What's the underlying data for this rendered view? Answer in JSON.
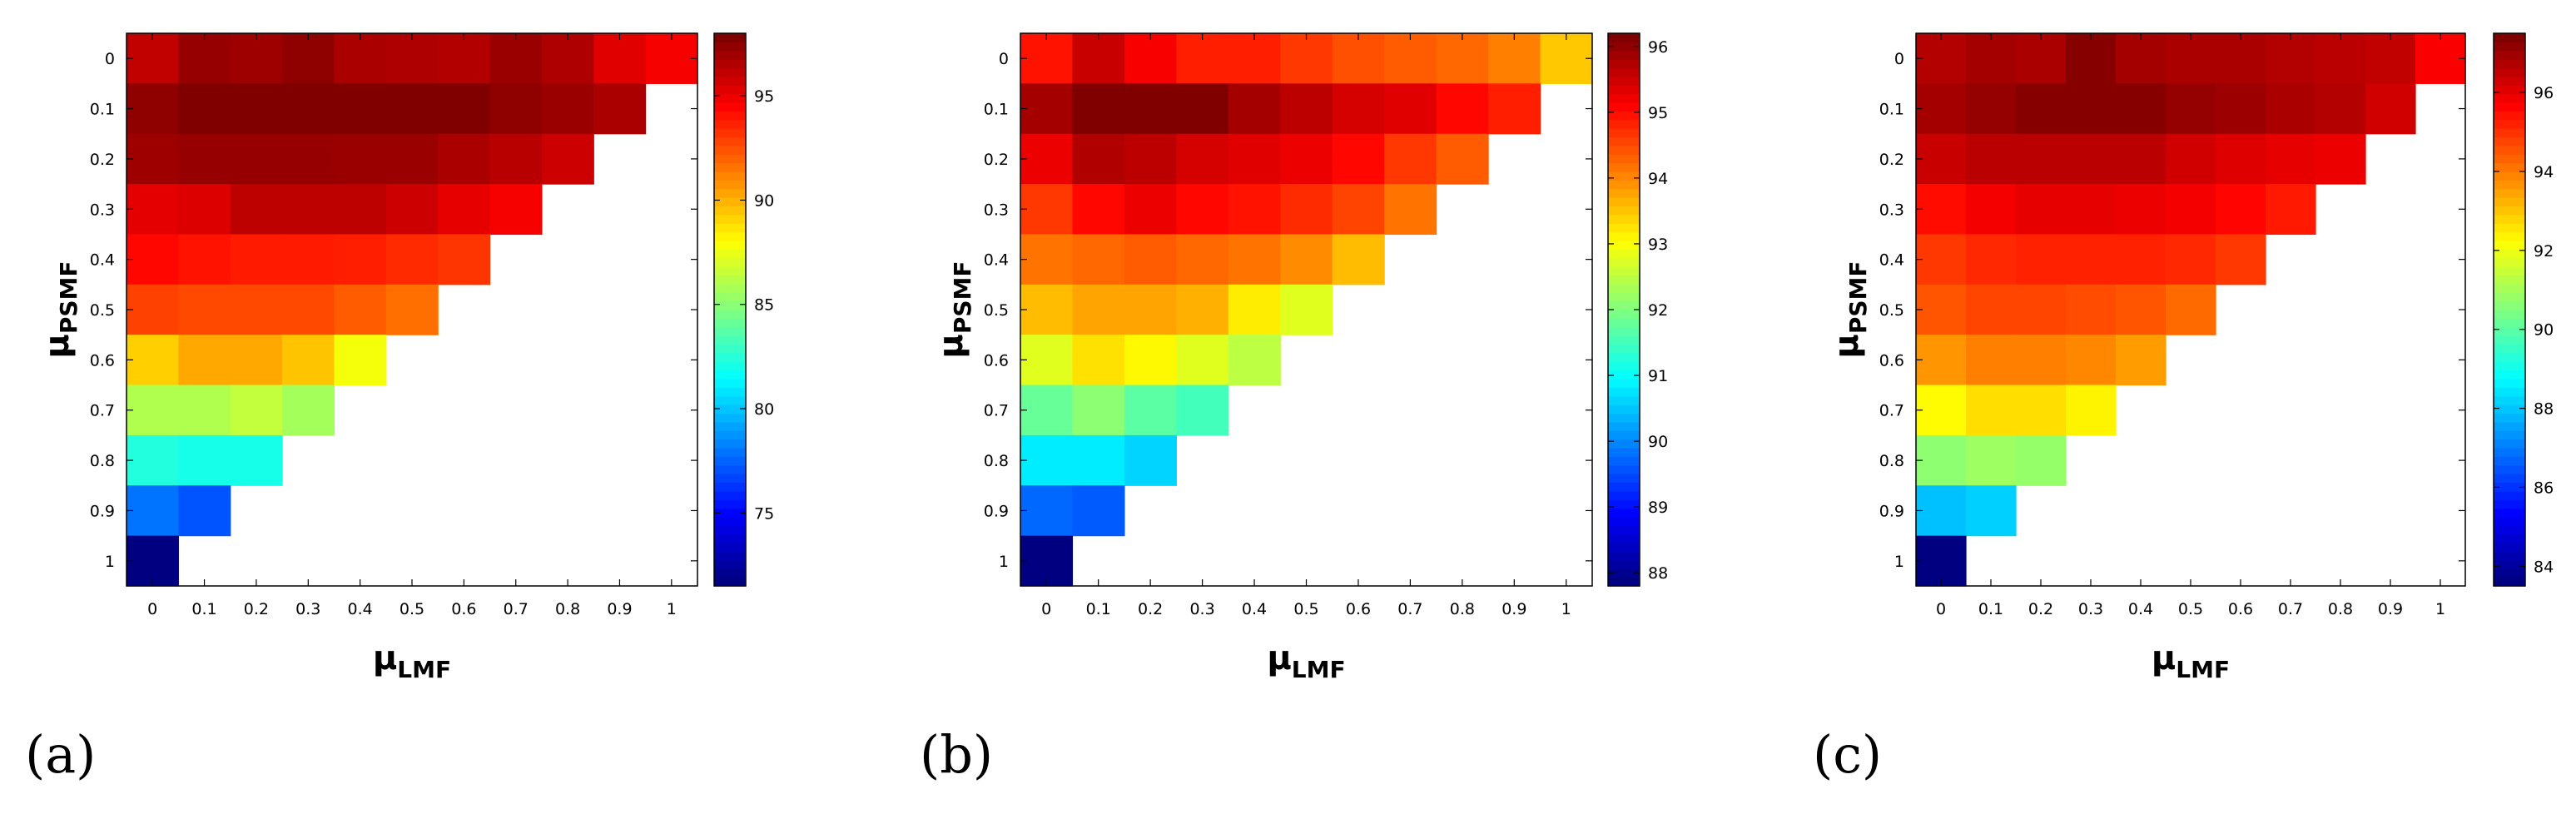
{
  "chart_data": [
    {
      "type": "heatmap",
      "panel_label": "(a)",
      "xlabel": {
        "symbol": "μ",
        "sub": "LMF"
      },
      "ylabel": {
        "symbol": "μ",
        "sub": "PSMF"
      },
      "x": [
        "0",
        "0.1",
        "0.2",
        "0.3",
        "0.4",
        "0.5",
        "0.6",
        "0.7",
        "0.8",
        "0.9",
        "1"
      ],
      "y": [
        "0",
        "0.1",
        "0.2",
        "0.3",
        "0.4",
        "0.5",
        "0.6",
        "0.7",
        "0.8",
        "0.9",
        "1"
      ],
      "clim": [
        71.5,
        98
      ],
      "colorbar_ticks": [
        "75",
        "80",
        "85",
        "90",
        "95"
      ],
      "values": [
        [
          96.3,
          97.4,
          97.2,
          97.6,
          96.9,
          96.8,
          96.7,
          97.3,
          96.8,
          95.5,
          94.9
        ],
        [
          97.6,
          98.0,
          98.0,
          98.0,
          98.0,
          98.0,
          98.0,
          97.6,
          97.3,
          96.9
        ],
        [
          97.2,
          97.4,
          97.4,
          97.4,
          97.3,
          97.3,
          96.9,
          96.5,
          96.0
        ],
        [
          95.4,
          95.6,
          96.4,
          96.4,
          96.4,
          96.0,
          95.3,
          94.9
        ],
        [
          94.5,
          94.2,
          94.0,
          94.0,
          93.9,
          93.6,
          93.3
        ],
        [
          93.0,
          92.8,
          92.8,
          92.8,
          92.3,
          91.8
        ],
        [
          89.3,
          90.3,
          90.3,
          89.6,
          87.8
        ],
        [
          86.0,
          86.0,
          86.5,
          85.7
        ],
        [
          82.3,
          82.0,
          82.0
        ],
        [
          77.8,
          77.0
        ],
        [
          71.5
        ]
      ]
    },
    {
      "type": "heatmap",
      "panel_label": "(b)",
      "xlabel": {
        "symbol": "μ",
        "sub": "LMF"
      },
      "ylabel": {
        "symbol": "μ",
        "sub": "PSMF"
      },
      "x": [
        "0",
        "0.1",
        "0.2",
        "0.3",
        "0.4",
        "0.5",
        "0.6",
        "0.7",
        "0.8",
        "0.9",
        "1"
      ],
      "y": [
        "0",
        "0.1",
        "0.2",
        "0.3",
        "0.4",
        "0.5",
        "0.6",
        "0.7",
        "0.8",
        "0.9",
        "1"
      ],
      "clim": [
        87.8,
        96.2
      ],
      "colorbar_ticks": [
        "88",
        "89",
        "90",
        "91",
        "92",
        "93",
        "94",
        "95",
        "96"
      ],
      "values": [
        [
          95.0,
          95.6,
          95.2,
          94.9,
          94.9,
          94.7,
          94.5,
          94.4,
          94.3,
          94.1,
          93.5
        ],
        [
          95.9,
          96.2,
          96.2,
          96.2,
          95.9,
          95.7,
          95.5,
          95.4,
          95.1,
          94.9
        ],
        [
          95.3,
          95.8,
          95.7,
          95.5,
          95.4,
          95.3,
          95.1,
          94.7,
          94.4
        ],
        [
          94.7,
          95.1,
          95.3,
          95.1,
          95.0,
          94.8,
          94.6,
          94.2
        ],
        [
          94.2,
          94.3,
          94.4,
          94.3,
          94.2,
          94.0,
          93.6
        ],
        [
          93.6,
          93.8,
          93.8,
          93.7,
          93.2,
          92.8
        ],
        [
          92.8,
          93.3,
          93.1,
          92.8,
          92.5
        ],
        [
          91.8,
          92.1,
          91.7,
          91.5
        ],
        [
          90.8,
          90.8,
          90.6
        ],
        [
          89.7,
          89.6
        ],
        [
          87.8
        ]
      ]
    },
    {
      "type": "heatmap",
      "panel_label": "(c)",
      "xlabel": {
        "symbol": "μ",
        "sub": "LMF"
      },
      "ylabel": {
        "symbol": "μ",
        "sub": "PSMF"
      },
      "x": [
        "0",
        "0.1",
        "0.2",
        "0.3",
        "0.4",
        "0.5",
        "0.6",
        "0.7",
        "0.8",
        "0.9",
        "1"
      ],
      "y": [
        "0",
        "0.1",
        "0.2",
        "0.3",
        "0.4",
        "0.5",
        "0.6",
        "0.7",
        "0.8",
        "0.9",
        "1"
      ],
      "clim": [
        83.5,
        97.5
      ],
      "colorbar_ticks": [
        "84",
        "86",
        "88",
        "90",
        "92",
        "94",
        "96"
      ],
      "values": [
        [
          96.8,
          97.0,
          96.9,
          97.4,
          97.0,
          96.9,
          96.9,
          96.8,
          96.7,
          96.6,
          95.8
        ],
        [
          97.0,
          97.2,
          97.4,
          97.4,
          97.4,
          97.2,
          97.1,
          96.9,
          96.8,
          96.4
        ],
        [
          96.5,
          96.7,
          96.7,
          96.7,
          96.7,
          96.4,
          96.2,
          96.1,
          96.0
        ],
        [
          95.6,
          95.9,
          96.1,
          96.1,
          96.0,
          95.9,
          95.7,
          95.4
        ],
        [
          95.0,
          95.2,
          95.3,
          95.3,
          95.3,
          95.2,
          95.0
        ],
        [
          94.6,
          94.8,
          94.8,
          94.7,
          94.6,
          94.3
        ],
        [
          93.7,
          94.0,
          94.0,
          93.9,
          93.6
        ],
        [
          92.3,
          92.7,
          92.7,
          92.4
        ],
        [
          90.7,
          90.9,
          90.8
        ],
        [
          87.9,
          88.1
        ],
        [
          83.5
        ]
      ]
    }
  ]
}
